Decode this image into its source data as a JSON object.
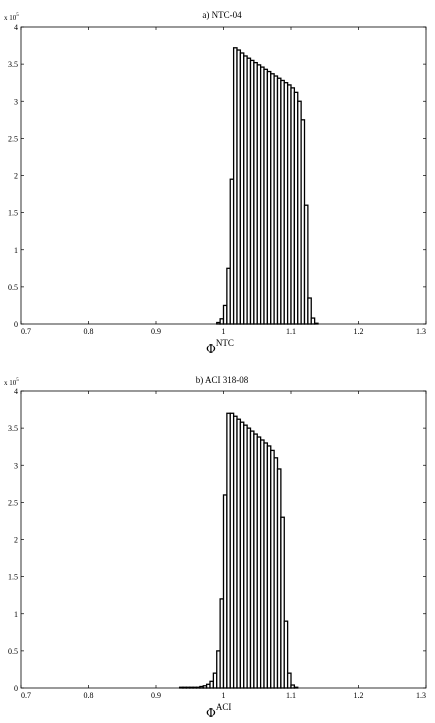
{
  "chart_data": [
    {
      "type": "bar",
      "title": "a) NTC-04",
      "xlabel_symbol": "Φ",
      "xlabel_sup": "NTC",
      "multiplier": "x 10",
      "multiplier_exp": "5",
      "xlim": [
        0.7,
        1.3
      ],
      "ylim": [
        0,
        4
      ],
      "xticks": [
        "0.7",
        "0.8",
        "0.9",
        "1",
        "1.1",
        "1.2",
        "1.3"
      ],
      "yticks": [
        "0",
        "0.5",
        "1",
        "1.5",
        "2",
        "2.5",
        "3",
        "3.5",
        "4"
      ],
      "bin_start": 0.97,
      "bin_width": 0.005,
      "values": [
        0,
        0,
        0,
        0,
        0.02,
        0.07,
        0.25,
        0.75,
        1.95,
        3.72,
        3.69,
        3.65,
        3.61,
        3.58,
        3.55,
        3.52,
        3.49,
        3.46,
        3.43,
        3.4,
        3.37,
        3.34,
        3.31,
        3.28,
        3.25,
        3.22,
        3.18,
        3.12,
        3.0,
        2.75,
        1.6,
        0.35,
        0.08,
        0.01,
        0,
        0
      ]
    },
    {
      "type": "bar",
      "title": "b) ACI 318-08",
      "xlabel_symbol": "Φ",
      "xlabel_sup": "ACI",
      "multiplier": "x 10",
      "multiplier_exp": "5",
      "xlim": [
        0.7,
        1.3
      ],
      "ylim": [
        0,
        4
      ],
      "xticks": [
        "0.7",
        "0.8",
        "0.9",
        "1",
        "1.1",
        "1.2",
        "1.3"
      ],
      "yticks": [
        "0",
        "0.5",
        "1",
        "1.5",
        "2",
        "2.5",
        "3",
        "3.5",
        "4"
      ],
      "bin_start": 0.935,
      "bin_width": 0.005,
      "values": [
        0.01,
        0.01,
        0.01,
        0.01,
        0.01,
        0.01,
        0.02,
        0.03,
        0.05,
        0.09,
        0.2,
        0.5,
        1.2,
        2.6,
        3.7,
        3.7,
        3.66,
        3.62,
        3.58,
        3.54,
        3.5,
        3.46,
        3.42,
        3.38,
        3.34,
        3.3,
        3.26,
        3.2,
        3.1,
        2.95,
        2.3,
        0.9,
        0.2,
        0.04,
        0.01,
        0
      ]
    }
  ]
}
